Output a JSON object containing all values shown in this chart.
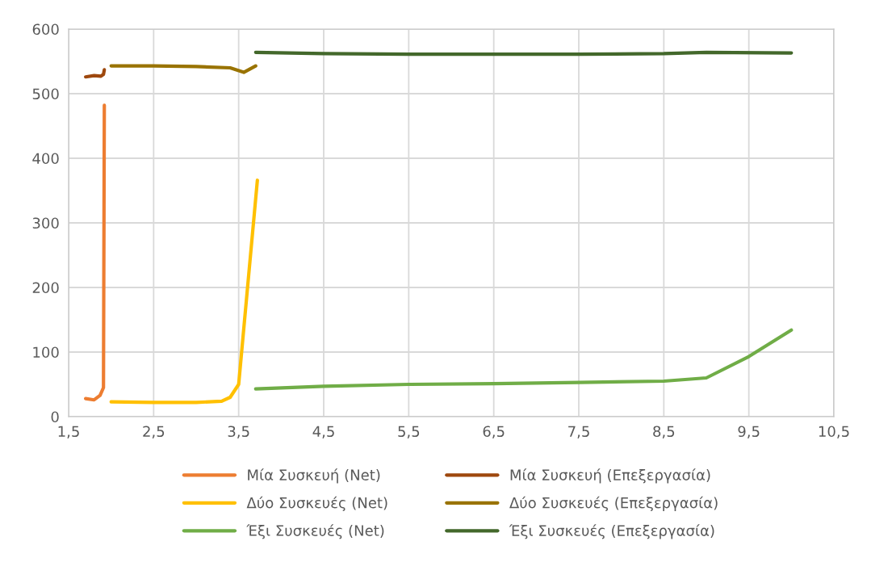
{
  "chart_data": {
    "type": "line",
    "xlim": [
      1.5,
      10.5
    ],
    "ylim": [
      0,
      600
    ],
    "xticks": [
      {
        "value": 1.5,
        "label": "1,5"
      },
      {
        "value": 2.5,
        "label": "2,5"
      },
      {
        "value": 3.5,
        "label": "3,5"
      },
      {
        "value": 4.5,
        "label": "4,5"
      },
      {
        "value": 5.5,
        "label": "5,5"
      },
      {
        "value": 6.5,
        "label": "6,5"
      },
      {
        "value": 7.5,
        "label": "7,5"
      },
      {
        "value": 8.5,
        "label": "8,5"
      },
      {
        "value": 9.5,
        "label": "9,5"
      },
      {
        "value": 10.5,
        "label": "10,5"
      }
    ],
    "yticks": [
      0,
      100,
      200,
      300,
      400,
      500,
      600
    ],
    "grid": true,
    "legend": "bottom",
    "marker": "none",
    "line_style": "solid",
    "series": [
      {
        "name": "Μία Συσκευή (Net)",
        "color": "#ed7d31",
        "x": [
          1.7,
          1.8,
          1.87,
          1.91,
          1.92
        ],
        "values": [
          28,
          26,
          33,
          45,
          482
        ]
      },
      {
        "name": "Δύο Συσκευές (Net)",
        "color": "#ffc000",
        "x": [
          2.0,
          2.5,
          3.0,
          3.3,
          3.4,
          3.5,
          3.72
        ],
        "values": [
          23,
          22,
          22,
          24,
          30,
          50,
          366
        ]
      },
      {
        "name": "Έξι Συσκευές (Net)",
        "color": "#70ad47",
        "x": [
          3.7,
          4.5,
          5.5,
          6.5,
          7.5,
          8.5,
          9.0,
          9.5,
          10.0
        ],
        "values": [
          43,
          47,
          50,
          51,
          53,
          55,
          60,
          93,
          134
        ]
      },
      {
        "name": "Μία Συσκευή (Επεξεργασία)",
        "color": "#9e480e",
        "x": [
          1.7,
          1.8,
          1.88,
          1.91,
          1.92
        ],
        "values": [
          526,
          528,
          527,
          530,
          537
        ]
      },
      {
        "name": "Δύο Συσκευές (Επεξεργασία)",
        "color": "#997300",
        "x": [
          2.0,
          2.5,
          3.0,
          3.4,
          3.56,
          3.7
        ],
        "values": [
          543,
          543,
          542,
          540,
          533,
          543
        ]
      },
      {
        "name": "Έξι Συσκευές (Επεξεργασία)",
        "color": "#43682b",
        "x": [
          3.7,
          4.5,
          5.5,
          6.5,
          7.5,
          8.5,
          9.0,
          10.0
        ],
        "values": [
          564,
          562,
          561,
          561,
          561,
          562,
          564,
          563
        ]
      }
    ]
  }
}
